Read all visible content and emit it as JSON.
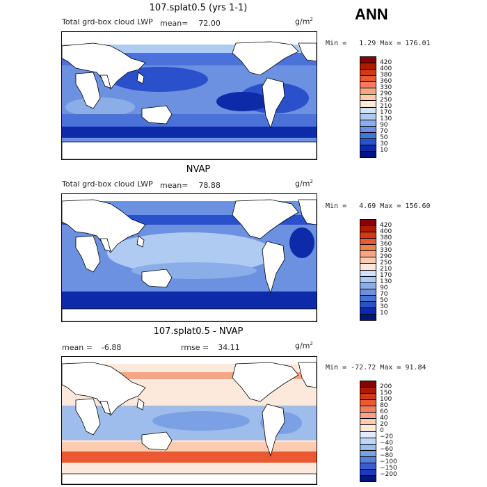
{
  "season": "ANN",
  "chart_data": [
    {
      "type": "heatmap",
      "title": "107.splat0.5 (yrs 1-1)",
      "subtitle": "Total grd-box cloud LWP",
      "mean_label": "mean=",
      "mean": "72.00",
      "units_base": "g/m",
      "units_exp": "2",
      "min_label": "Min =",
      "min": "1.29",
      "max_label": "Max =",
      "max": "176.01",
      "levels": [
        "420",
        "400",
        "380",
        "360",
        "330",
        "290",
        "250",
        "210",
        "170",
        "130",
        "90",
        "70",
        "50",
        "30",
        "10"
      ],
      "colors": [
        "#8b0000",
        "#b01a00",
        "#d43a14",
        "#ea5a32",
        "#f57e5a",
        "#f9a584",
        "#fccbb0",
        "#fde9dc",
        "#d3e3f7",
        "#b0cbf2",
        "#8caee8",
        "#6b91e0",
        "#4a72d8",
        "#2a50cc",
        "#0d2ba8",
        "#00167a"
      ]
    },
    {
      "type": "heatmap",
      "title": "NVAP",
      "subtitle": "Total grd-box cloud LWP",
      "mean_label": "mean=",
      "mean": "78.88",
      "units_base": "g/m",
      "units_exp": "2",
      "min_label": "Min =",
      "min": "4.69",
      "max_label": "Max =",
      "max": "156.60",
      "levels": [
        "420",
        "400",
        "380",
        "360",
        "330",
        "290",
        "250",
        "210",
        "170",
        "130",
        "90",
        "70",
        "50",
        "30",
        "10"
      ],
      "colors": [
        "#8b0000",
        "#b01a00",
        "#d43a14",
        "#ea5a32",
        "#f57e5a",
        "#f9a584",
        "#fccbb0",
        "#fde9dc",
        "#d3e3f7",
        "#b0cbf2",
        "#8caee8",
        "#6b91e0",
        "#4a72d8",
        "#2a50cc",
        "#0d2ba8",
        "#00167a"
      ]
    },
    {
      "type": "heatmap",
      "title": "107.splat0.5 - NVAP",
      "mean_label": "mean =",
      "mean": "-6.88",
      "rmse_label": "rmse =",
      "rmse": "34.11",
      "units_base": "g/m",
      "units_exp": "2",
      "min_label": "Min =",
      "min": "-72.72",
      "max_label": "Max =",
      "max": "91.84",
      "levels": [
        "200",
        "150",
        "100",
        "80",
        "60",
        "40",
        "20",
        "0",
        "−20",
        "−40",
        "−60",
        "−80",
        "−100",
        "−150",
        "−200"
      ],
      "colors": [
        "#8b0000",
        "#b01a00",
        "#d43a14",
        "#ea5a32",
        "#f57e5a",
        "#f9a584",
        "#fccbb0",
        "#fde9dc",
        "#e3ecfa",
        "#c3d6f4",
        "#9ebdec",
        "#7ba0e3",
        "#5a80da",
        "#3a5fd0",
        "#1c3cbd",
        "#00167a"
      ]
    }
  ]
}
